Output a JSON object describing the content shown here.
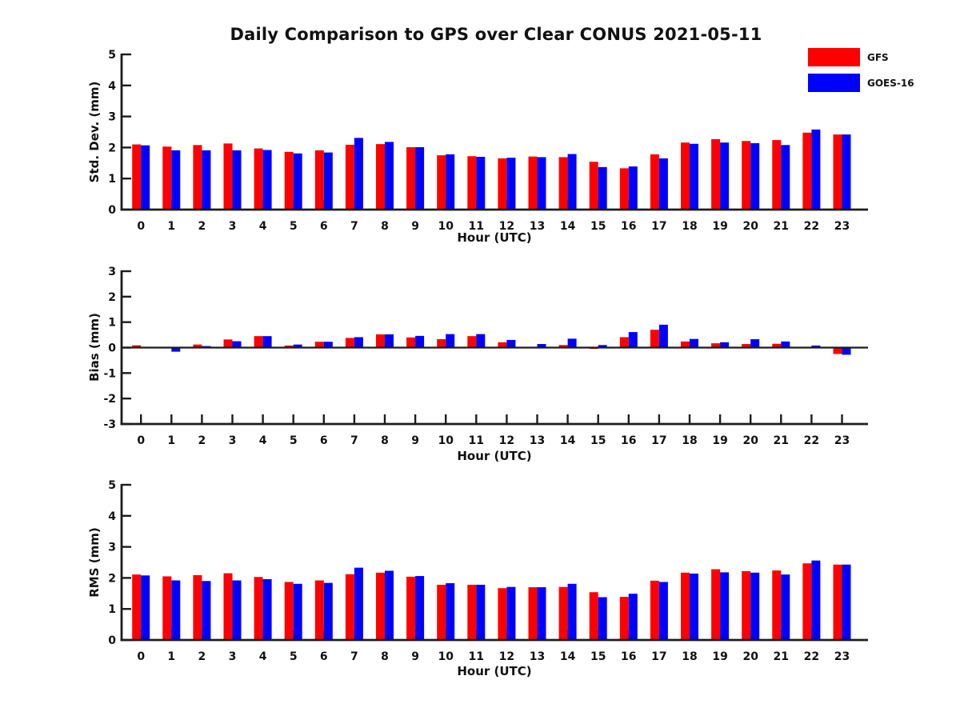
{
  "title": "Daily Comparison to GPS over Clear CONUS 2021-05-11",
  "legend": {
    "position": "top-right",
    "entries": [
      {
        "label": "GFS",
        "color": "#ff0000"
      },
      {
        "label": "GOES-16",
        "color": "#0000ff"
      }
    ]
  },
  "chart_data": [
    {
      "type": "bar",
      "ylabel": "Std. Dev. (mm)",
      "xlabel": "Hour (UTC)",
      "ylim": [
        0,
        5
      ],
      "yticks": [
        0,
        1,
        2,
        3,
        4,
        5
      ],
      "grid": false,
      "legend_position": "upper right (figure)",
      "categories": [
        "0",
        "1",
        "2",
        "3",
        "4",
        "5",
        "6",
        "7",
        "8",
        "9",
        "10",
        "11",
        "12",
        "13",
        "14",
        "15",
        "16",
        "17",
        "18",
        "19",
        "20",
        "21",
        "22",
        "23"
      ],
      "series": [
        {
          "name": "GFS",
          "color": "#ff0000",
          "values": [
            2.1,
            2.03,
            2.08,
            2.13,
            1.97,
            1.86,
            1.91,
            2.09,
            2.11,
            2.01,
            1.75,
            1.72,
            1.65,
            1.71,
            1.69,
            1.54,
            1.33,
            1.78,
            2.16,
            2.27,
            2.21,
            2.24,
            2.48,
            2.42
          ]
        },
        {
          "name": "GOES-16",
          "color": "#0000ff",
          "values": [
            2.07,
            1.91,
            1.91,
            1.91,
            1.92,
            1.81,
            1.84,
            2.31,
            2.18,
            2.01,
            1.78,
            1.7,
            1.67,
            1.69,
            1.79,
            1.37,
            1.39,
            1.65,
            2.12,
            2.16,
            2.14,
            2.08,
            2.58,
            2.42
          ]
        }
      ]
    },
    {
      "type": "bar",
      "ylabel": "Bias (mm)",
      "xlabel": "Hour (UTC)",
      "ylim": [
        -3,
        3
      ],
      "yticks": [
        -3,
        -2,
        -1,
        0,
        1,
        2,
        3
      ],
      "grid": false,
      "zero_line": true,
      "categories": [
        "0",
        "1",
        "2",
        "3",
        "4",
        "5",
        "6",
        "7",
        "8",
        "9",
        "10",
        "11",
        "12",
        "13",
        "14",
        "15",
        "16",
        "17",
        "18",
        "19",
        "20",
        "21",
        "22",
        "23"
      ],
      "series": [
        {
          "name": "GFS",
          "color": "#ff0000",
          "values": [
            0.09,
            -0.03,
            0.12,
            0.32,
            0.45,
            0.08,
            0.23,
            0.38,
            0.52,
            0.4,
            0.33,
            0.45,
            0.21,
            -0.03,
            0.1,
            -0.05,
            0.41,
            0.7,
            0.24,
            0.17,
            0.14,
            0.15,
            0.02,
            -0.25
          ]
        },
        {
          "name": "GOES-16",
          "color": "#0000ff",
          "values": [
            0.02,
            -0.16,
            0.06,
            0.25,
            0.45,
            0.12,
            0.23,
            0.41,
            0.52,
            0.46,
            0.53,
            0.53,
            0.3,
            0.14,
            0.35,
            0.1,
            0.61,
            0.9,
            0.34,
            0.21,
            0.33,
            0.24,
            0.08,
            -0.28
          ]
        }
      ]
    },
    {
      "type": "bar",
      "ylabel": "RMS (mm)",
      "xlabel": "Hour (UTC)",
      "ylim": [
        0,
        5
      ],
      "yticks": [
        0,
        1,
        2,
        3,
        4,
        5
      ],
      "grid": false,
      "categories": [
        "0",
        "1",
        "2",
        "3",
        "4",
        "5",
        "6",
        "7",
        "8",
        "9",
        "10",
        "11",
        "12",
        "13",
        "14",
        "15",
        "16",
        "17",
        "18",
        "19",
        "20",
        "21",
        "22",
        "23"
      ],
      "series": [
        {
          "name": "GFS",
          "color": "#ff0000",
          "values": [
            2.11,
            2.05,
            2.09,
            2.15,
            2.03,
            1.87,
            1.92,
            2.12,
            2.17,
            2.04,
            1.78,
            1.78,
            1.67,
            1.7,
            1.71,
            1.54,
            1.39,
            1.91,
            2.17,
            2.28,
            2.22,
            2.24,
            2.47,
            2.43
          ]
        },
        {
          "name": "GOES-16",
          "color": "#0000ff",
          "values": [
            2.08,
            1.92,
            1.9,
            1.92,
            1.96,
            1.81,
            1.84,
            2.33,
            2.23,
            2.06,
            1.83,
            1.78,
            1.71,
            1.7,
            1.81,
            1.38,
            1.49,
            1.87,
            2.14,
            2.18,
            2.17,
            2.11,
            2.56,
            2.43
          ]
        }
      ]
    }
  ]
}
